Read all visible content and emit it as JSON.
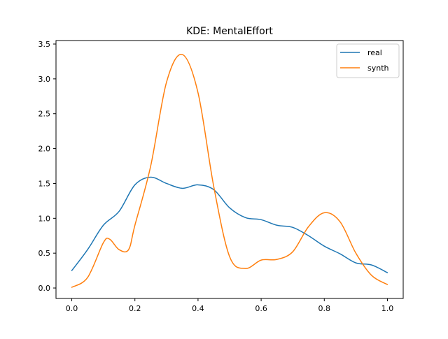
{
  "chart_data": {
    "type": "line",
    "title": "KDE: MentalEffort",
    "xlabel": "",
    "ylabel": "",
    "xlim": [
      -0.05,
      1.05
    ],
    "ylim": [
      -0.15,
      3.55
    ],
    "xticks": [
      0.0,
      0.2,
      0.4,
      0.6,
      0.8,
      1.0
    ],
    "xtick_labels": [
      "0.0",
      "0.2",
      "0.4",
      "0.6",
      "0.8",
      "1.0"
    ],
    "yticks": [
      0.0,
      0.5,
      1.0,
      1.5,
      2.0,
      2.5,
      3.0,
      3.5
    ],
    "ytick_labels": [
      "0.0",
      "0.5",
      "1.0",
      "1.5",
      "2.0",
      "2.5",
      "3.0",
      "3.5"
    ],
    "grid": false,
    "legend_position": "top-right",
    "series": [
      {
        "name": "real",
        "color": "#1f77b4",
        "x": [
          0.0,
          0.05,
          0.1,
          0.15,
          0.2,
          0.25,
          0.3,
          0.35,
          0.4,
          0.45,
          0.5,
          0.55,
          0.6,
          0.65,
          0.7,
          0.75,
          0.8,
          0.85,
          0.9,
          0.95,
          1.0
        ],
        "y": [
          0.25,
          0.55,
          0.9,
          1.1,
          1.48,
          1.59,
          1.5,
          1.43,
          1.48,
          1.41,
          1.15,
          1.01,
          0.98,
          0.9,
          0.87,
          0.75,
          0.6,
          0.49,
          0.36,
          0.33,
          0.22
        ]
      },
      {
        "name": "synth",
        "color": "#ff7f0e",
        "x": [
          0.0,
          0.05,
          0.1,
          0.12,
          0.15,
          0.18,
          0.2,
          0.25,
          0.3,
          0.35,
          0.4,
          0.45,
          0.5,
          0.55,
          0.6,
          0.65,
          0.7,
          0.75,
          0.8,
          0.85,
          0.9,
          0.95,
          1.0
        ],
        "y": [
          0.01,
          0.15,
          0.65,
          0.7,
          0.55,
          0.55,
          0.9,
          1.75,
          2.95,
          3.35,
          2.8,
          1.45,
          0.45,
          0.28,
          0.4,
          0.41,
          0.52,
          0.88,
          1.08,
          0.95,
          0.5,
          0.18,
          0.05
        ]
      }
    ]
  }
}
